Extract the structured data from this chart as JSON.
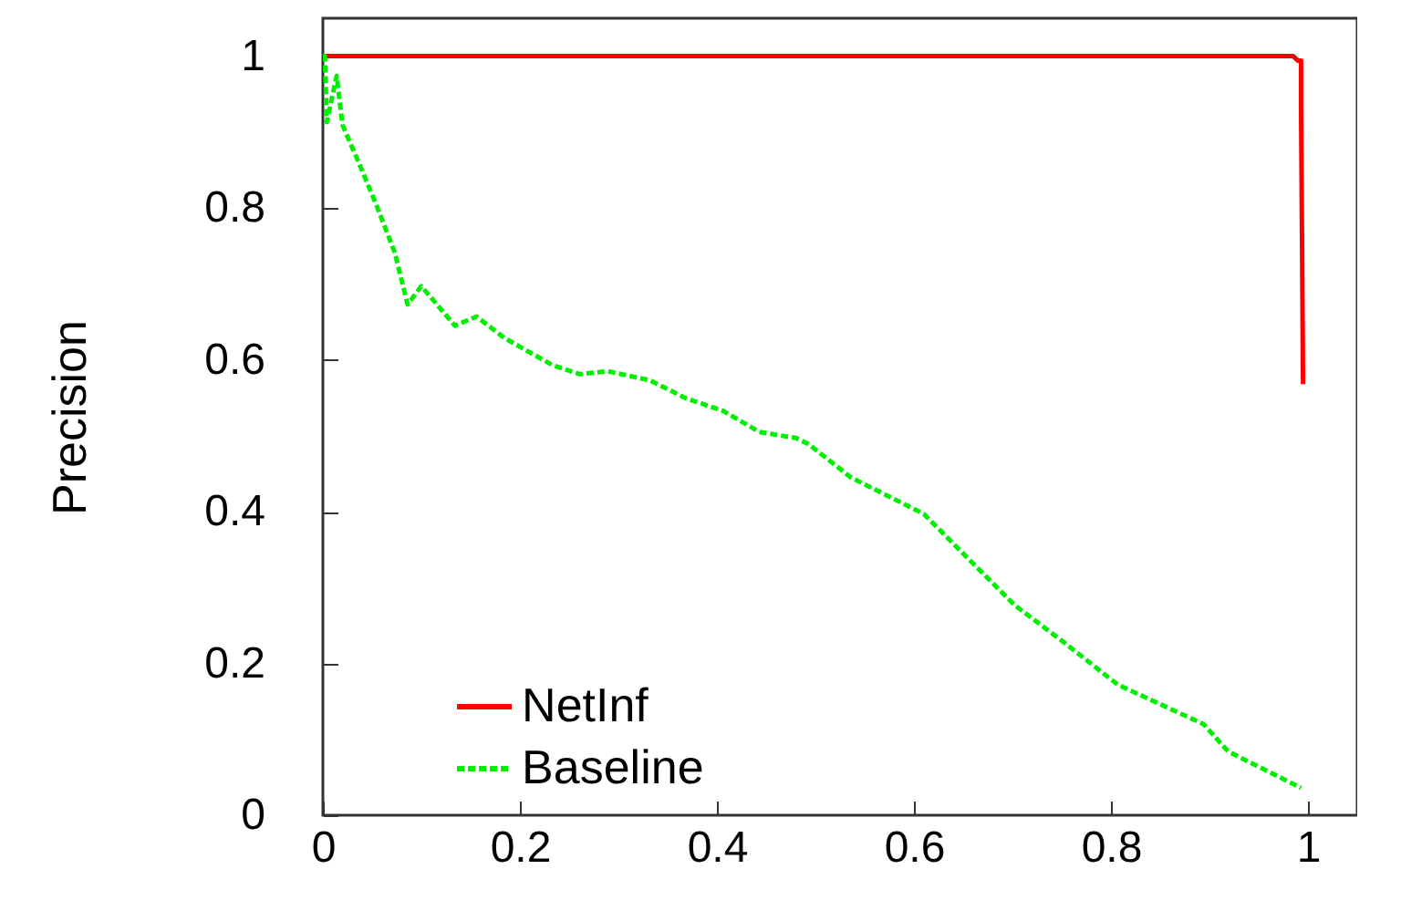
{
  "chart_data": {
    "type": "line",
    "ylabel": "Precision",
    "xlim": [
      0,
      1.05
    ],
    "ylim": [
      0,
      1.05
    ],
    "xticks": [
      0,
      0.2,
      0.4,
      0.6,
      0.8,
      1
    ],
    "yticks": [
      0,
      0.2,
      0.4,
      0.6,
      0.8,
      1
    ],
    "legend": "bottom",
    "grid": false,
    "series": [
      {
        "name": "NetInf",
        "color": "#ff0000",
        "line_style": "solid",
        "x": [
          0,
          0.985,
          0.99,
          0.993,
          0.993,
          0.995
        ],
        "values": [
          1,
          1,
          0.994,
          0.994,
          0.934,
          0.568
        ]
      },
      {
        "name": "Baseline",
        "color": "#00ee00",
        "line_style": "dashed",
        "x": [
          0,
          0.002,
          0.004,
          0.014,
          0.02,
          0.036,
          0.054,
          0.073,
          0.086,
          0.1,
          0.134,
          0.156,
          0.184,
          0.233,
          0.261,
          0.289,
          0.332,
          0.369,
          0.406,
          0.443,
          0.48,
          0.493,
          0.536,
          0.61,
          0.659,
          0.702,
          0.752,
          0.807,
          0.894,
          0.919,
          0.993
        ],
        "values": [
          1,
          1,
          0.913,
          0.974,
          0.909,
          0.861,
          0.805,
          0.741,
          0.673,
          0.697,
          0.645,
          0.657,
          0.629,
          0.593,
          0.581,
          0.585,
          0.573,
          0.549,
          0.533,
          0.505,
          0.497,
          0.489,
          0.445,
          0.397,
          0.333,
          0.277,
          0.228,
          0.172,
          0.12,
          0.084,
          0.036
        ]
      }
    ]
  }
}
